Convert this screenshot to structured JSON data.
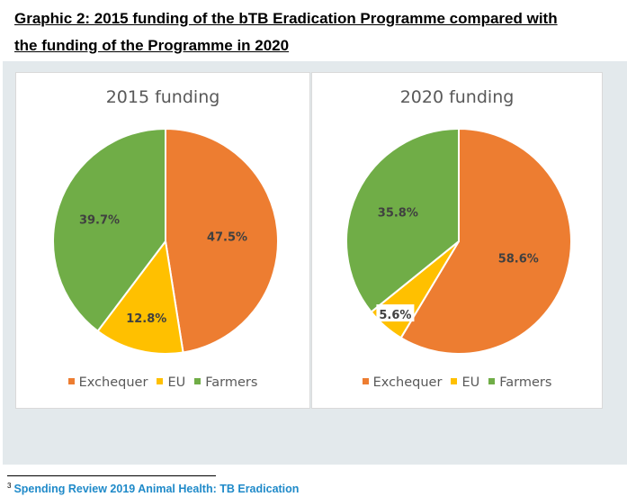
{
  "heading": {
    "line1": "Graphic 2: 2015 funding of the bTB Eradication Programme compared with",
    "line2": "the funding of the Programme in 2020"
  },
  "colors": {
    "exchequer": "#ed7d31",
    "eu": "#ffc000",
    "farmers": "#70ad47",
    "panel_bg": "#e3e9ec"
  },
  "legend": [
    {
      "name": "Exchequer",
      "color": "#ed7d31"
    },
    {
      "name": "EU",
      "color": "#ffc000"
    },
    {
      "name": "Farmers",
      "color": "#70ad47"
    }
  ],
  "chart_data": [
    {
      "type": "pie",
      "title": "2015 funding",
      "categories": [
        "Exchequer",
        "EU",
        "Farmers"
      ],
      "values": [
        47.5,
        12.8,
        39.7
      ],
      "labels": [
        "47.5%",
        "12.8%",
        "39.7%"
      ],
      "colors": [
        "#ed7d31",
        "#ffc000",
        "#70ad47"
      ],
      "legend_position": "bottom"
    },
    {
      "type": "pie",
      "title": "2020 funding",
      "categories": [
        "Exchequer",
        "EU",
        "Farmers"
      ],
      "values": [
        58.6,
        5.6,
        35.8
      ],
      "labels": [
        "58.6%",
        "5.6%",
        "35.8%"
      ],
      "colors": [
        "#ed7d31",
        "#ffc000",
        "#70ad47"
      ],
      "legend_position": "bottom"
    }
  ],
  "footnote": {
    "marker": "3",
    "text": "Spending Review 2019 Animal Health: TB Eradication"
  }
}
